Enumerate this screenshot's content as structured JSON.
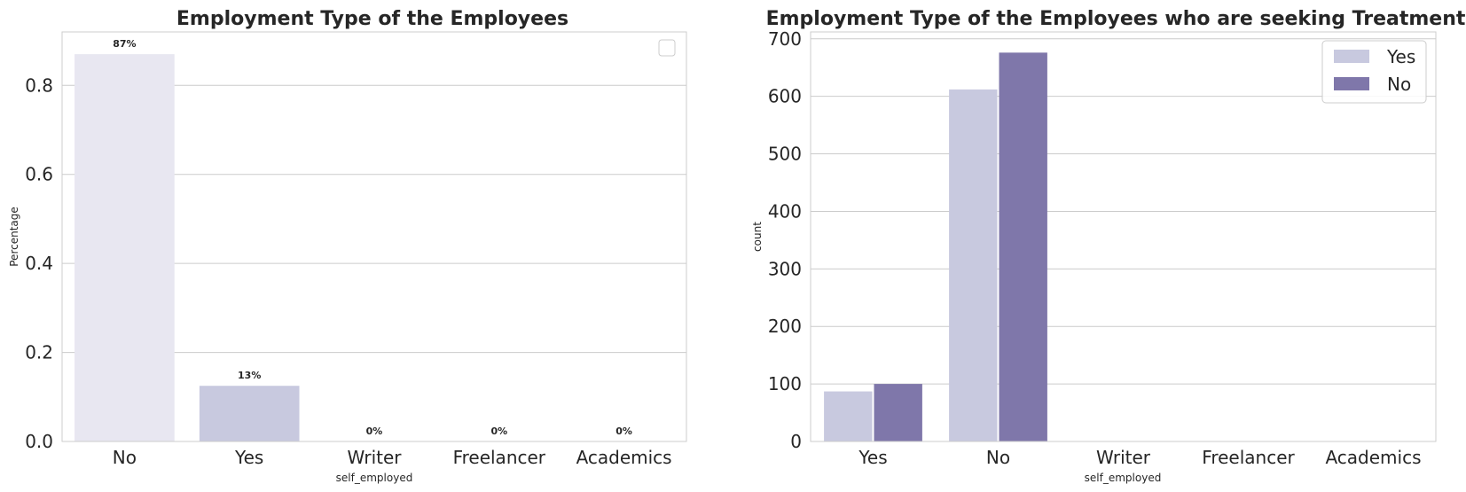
{
  "chart_data": [
    {
      "type": "bar",
      "title": "Employment Type of the Employees",
      "xlabel": "self_employed",
      "ylabel": "Percentage",
      "categories": [
        "No",
        "Yes",
        "Writer",
        "Freelancer",
        "Academics"
      ],
      "values": [
        0.87,
        0.125,
        0,
        0,
        0
      ],
      "data_labels": [
        "87%",
        "13%",
        "0%",
        "0%",
        "0%"
      ],
      "colors": [
        "#e8e7f1",
        "#c8c9df",
        "#a9a8cf",
        "#8c81be",
        "#6f5ba6"
      ],
      "ylim": [
        0,
        0.92
      ],
      "yticks": [
        0.0,
        0.2,
        0.4,
        0.6,
        0.8
      ],
      "ytick_labels": [
        "0.0",
        "0.2",
        "0.4",
        "0.6",
        "0.8"
      ],
      "grid": true,
      "legend": "top-right (empty)"
    },
    {
      "type": "bar",
      "title": "Employment Type of the Employees who are seeking Treatment",
      "xlabel": "self_employed",
      "ylabel": "count",
      "categories": [
        "Yes",
        "No",
        "Writer",
        "Freelancer",
        "Academics"
      ],
      "series": [
        {
          "name": "Yes",
          "values": [
            87,
            612,
            0,
            0,
            0
          ],
          "color": "#c8c9df"
        },
        {
          "name": "No",
          "values": [
            100,
            676,
            0,
            0,
            0
          ],
          "color": "#7f77aa"
        }
      ],
      "ylim": [
        0,
        712
      ],
      "yticks": [
        0,
        100,
        200,
        300,
        400,
        500,
        600,
        700
      ],
      "ytick_labels": [
        "0",
        "100",
        "200",
        "300",
        "400",
        "500",
        "600",
        "700"
      ],
      "grid": true,
      "legend": "top-right"
    }
  ]
}
